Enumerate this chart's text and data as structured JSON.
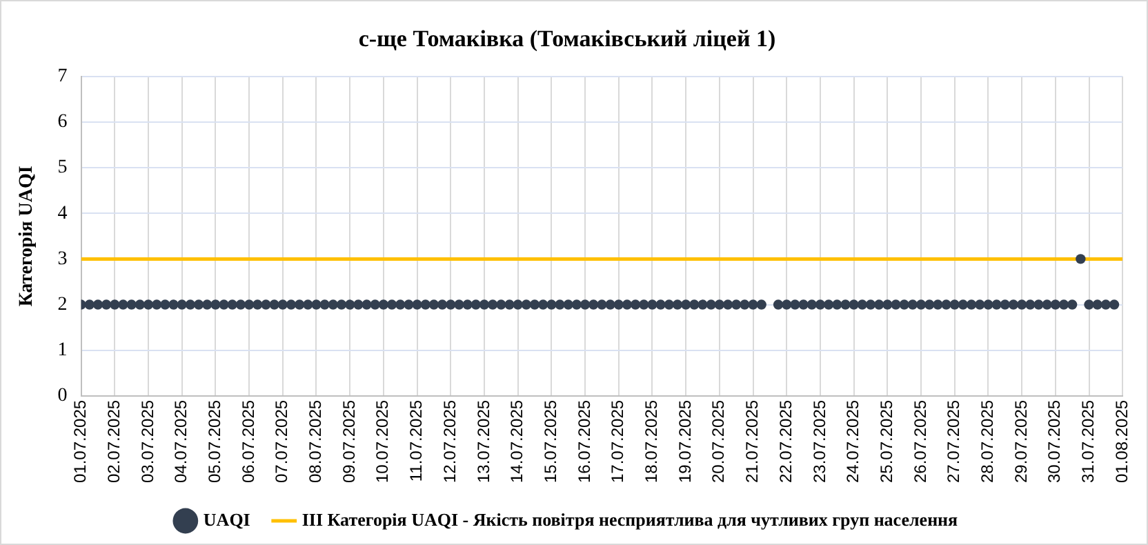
{
  "chart_data": {
    "type": "scatter",
    "title": "с-ще Томаківка (Томаківський ліцей 1)",
    "ylabel": "Категорія UAQI",
    "x": [
      "2025-07-01T00:00",
      "2025-07-01T06:00",
      "2025-07-01T12:00",
      "2025-07-01T18:00",
      "2025-07-02T00:00",
      "2025-07-02T06:00",
      "2025-07-02T12:00",
      "2025-07-02T18:00",
      "2025-07-03T00:00",
      "2025-07-03T06:00",
      "2025-07-03T12:00",
      "2025-07-03T18:00",
      "2025-07-04T00:00",
      "2025-07-04T06:00",
      "2025-07-04T12:00",
      "2025-07-04T18:00",
      "2025-07-05T00:00",
      "2025-07-05T06:00",
      "2025-07-05T12:00",
      "2025-07-05T18:00",
      "2025-07-06T00:00",
      "2025-07-06T06:00",
      "2025-07-06T12:00",
      "2025-07-06T18:00",
      "2025-07-07T00:00",
      "2025-07-07T06:00",
      "2025-07-07T12:00",
      "2025-07-07T18:00",
      "2025-07-08T00:00",
      "2025-07-08T06:00",
      "2025-07-08T12:00",
      "2025-07-08T18:00",
      "2025-07-09T00:00",
      "2025-07-09T06:00",
      "2025-07-09T12:00",
      "2025-07-09T18:00",
      "2025-07-10T00:00",
      "2025-07-10T06:00",
      "2025-07-10T12:00",
      "2025-07-10T18:00",
      "2025-07-11T00:00",
      "2025-07-11T06:00",
      "2025-07-11T12:00",
      "2025-07-11T18:00",
      "2025-07-12T00:00",
      "2025-07-12T06:00",
      "2025-07-12T12:00",
      "2025-07-12T18:00",
      "2025-07-13T00:00",
      "2025-07-13T06:00",
      "2025-07-13T12:00",
      "2025-07-13T18:00",
      "2025-07-14T00:00",
      "2025-07-14T06:00",
      "2025-07-14T12:00",
      "2025-07-14T18:00",
      "2025-07-15T00:00",
      "2025-07-15T06:00",
      "2025-07-15T12:00",
      "2025-07-15T18:00",
      "2025-07-16T00:00",
      "2025-07-16T06:00",
      "2025-07-16T12:00",
      "2025-07-16T18:00",
      "2025-07-17T00:00",
      "2025-07-17T06:00",
      "2025-07-17T12:00",
      "2025-07-17T18:00",
      "2025-07-18T00:00",
      "2025-07-18T06:00",
      "2025-07-18T12:00",
      "2025-07-18T18:00",
      "2025-07-19T00:00",
      "2025-07-19T06:00",
      "2025-07-19T12:00",
      "2025-07-19T18:00",
      "2025-07-20T00:00",
      "2025-07-20T06:00",
      "2025-07-20T12:00",
      "2025-07-20T18:00",
      "2025-07-21T00:00",
      "2025-07-21T06:00",
      "2025-07-21T12:00",
      "2025-07-21T18:00",
      "2025-07-22T00:00",
      "2025-07-22T06:00",
      "2025-07-22T12:00",
      "2025-07-22T18:00",
      "2025-07-23T00:00",
      "2025-07-23T06:00",
      "2025-07-23T12:00",
      "2025-07-23T18:00",
      "2025-07-24T00:00",
      "2025-07-24T06:00",
      "2025-07-24T12:00",
      "2025-07-24T18:00",
      "2025-07-25T00:00",
      "2025-07-25T06:00",
      "2025-07-25T12:00",
      "2025-07-25T18:00",
      "2025-07-26T00:00",
      "2025-07-26T06:00",
      "2025-07-26T12:00",
      "2025-07-26T18:00",
      "2025-07-27T00:00",
      "2025-07-27T06:00",
      "2025-07-27T12:00",
      "2025-07-27T18:00",
      "2025-07-28T00:00",
      "2025-07-28T06:00",
      "2025-07-28T12:00",
      "2025-07-28T18:00",
      "2025-07-29T00:00",
      "2025-07-29T06:00",
      "2025-07-29T12:00",
      "2025-07-29T18:00",
      "2025-07-30T00:00",
      "2025-07-30T06:00",
      "2025-07-30T12:00",
      "2025-07-30T18:00",
      "2025-07-31T00:00",
      "2025-07-31T06:00",
      "2025-07-31T12:00",
      "2025-07-31T18:00"
    ],
    "series": [
      {
        "name": "UAQI",
        "color": "#333f50",
        "values": [
          2,
          2,
          2,
          2,
          2,
          2,
          2,
          2,
          2,
          2,
          2,
          2,
          2,
          2,
          2,
          2,
          2,
          2,
          2,
          2,
          2,
          2,
          2,
          2,
          2,
          2,
          2,
          2,
          2,
          2,
          2,
          2,
          2,
          2,
          2,
          2,
          2,
          2,
          2,
          2,
          2,
          2,
          2,
          2,
          2,
          2,
          2,
          2,
          2,
          2,
          2,
          2,
          2,
          2,
          2,
          2,
          2,
          2,
          2,
          2,
          2,
          2,
          2,
          2,
          2,
          2,
          2,
          2,
          2,
          2,
          2,
          2,
          2,
          2,
          2,
          2,
          2,
          2,
          2,
          2,
          2,
          2,
          null,
          2,
          2,
          2,
          2,
          2,
          2,
          2,
          2,
          2,
          2,
          2,
          2,
          2,
          2,
          2,
          2,
          2,
          2,
          2,
          2,
          2,
          2,
          2,
          2,
          2,
          2,
          2,
          2,
          2,
          2,
          2,
          2,
          2,
          2,
          2,
          2,
          3,
          2,
          2,
          2,
          2
        ]
      }
    ],
    "ref_lines": [
      {
        "axis": "y",
        "value": 3,
        "label": "III Категорія UAQI - Якість повітря несприятлива для чутливих груп населення",
        "color": "#ffc000"
      }
    ],
    "xlim": [
      "2025-07-01",
      "2025-08-01"
    ],
    "xticks": [
      {
        "value": "2025-07-01",
        "label": "01.07.2025"
      },
      {
        "value": "2025-07-02",
        "label": "02.07.2025"
      },
      {
        "value": "2025-07-03",
        "label": "03.07.2025"
      },
      {
        "value": "2025-07-04",
        "label": "04.07.2025"
      },
      {
        "value": "2025-07-05",
        "label": "05.07.2025"
      },
      {
        "value": "2025-07-06",
        "label": "06.07.2025"
      },
      {
        "value": "2025-07-07",
        "label": "07.07.2025"
      },
      {
        "value": "2025-07-08",
        "label": "08.07.2025"
      },
      {
        "value": "2025-07-09",
        "label": "09.07.2025"
      },
      {
        "value": "2025-07-10",
        "label": "10.07.2025"
      },
      {
        "value": "2025-07-11",
        "label": "11.07.2025"
      },
      {
        "value": "2025-07-12",
        "label": "12.07.2025"
      },
      {
        "value": "2025-07-13",
        "label": "13.07.2025"
      },
      {
        "value": "2025-07-14",
        "label": "14.07.2025"
      },
      {
        "value": "2025-07-15",
        "label": "15.07.2025"
      },
      {
        "value": "2025-07-16",
        "label": "16.07.2025"
      },
      {
        "value": "2025-07-17",
        "label": "17.07.2025"
      },
      {
        "value": "2025-07-18",
        "label": "18.07.2025"
      },
      {
        "value": "2025-07-19",
        "label": "19.07.2025"
      },
      {
        "value": "2025-07-20",
        "label": "20.07.2025"
      },
      {
        "value": "2025-07-21",
        "label": "21.07.2025"
      },
      {
        "value": "2025-07-22",
        "label": "22.07.2025"
      },
      {
        "value": "2025-07-23",
        "label": "23.07.2025"
      },
      {
        "value": "2025-07-24",
        "label": "24.07.2025"
      },
      {
        "value": "2025-07-25",
        "label": "25.07.2025"
      },
      {
        "value": "2025-07-26",
        "label": "26.07.2025"
      },
      {
        "value": "2025-07-27",
        "label": "27.07.2025"
      },
      {
        "value": "2025-07-28",
        "label": "28.07.2025"
      },
      {
        "value": "2025-07-29",
        "label": "29.07.2025"
      },
      {
        "value": "2025-07-30",
        "label": "30.07.2025"
      },
      {
        "value": "2025-07-31",
        "label": "31.07.2025"
      },
      {
        "value": "2025-08-01",
        "label": "01.08.2025"
      }
    ],
    "ylim": [
      0,
      7
    ],
    "yticks": [
      0,
      1,
      2,
      3,
      4,
      5,
      6,
      7
    ],
    "grid": true,
    "legend": "bottom",
    "marker": "circle"
  }
}
